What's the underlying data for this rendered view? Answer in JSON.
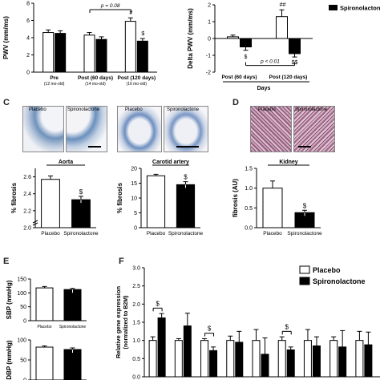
{
  "panels": {
    "A": {
      "ylabel": "PWV (mm/ms)",
      "yticks": [
        "0",
        "2",
        "4",
        "6",
        "8"
      ],
      "groups": [
        {
          "label": "Pre",
          "sub": "(12 mo-old)"
        },
        {
          "label": "Post (60 days)",
          "sub": "(14 mo-old)"
        },
        {
          "label": "Post (120 days)",
          "sub": "(16 mo-old)"
        }
      ],
      "pval": "p = 0.08",
      "sig_hash": "#",
      "sig_dollar": "$"
    },
    "B": {
      "ylabel": "Delta PWV (mm/ms)",
      "yticks": [
        "2",
        "1",
        "0",
        "-1",
        "-2"
      ],
      "xlabel": "Days",
      "groups": [
        "Post (60 days)",
        "Post (120 days)"
      ],
      "pval": "p < 0.01",
      "sig_hashhash": "##",
      "sig_dollar": "$",
      "sig_dollardollar": "$$",
      "legend": [
        "Spironolactone"
      ]
    },
    "C": {
      "label": "C",
      "hist_labels": [
        "Placebo",
        "Spironolactone",
        "Placebo",
        "Spironolactone"
      ],
      "aorta_title": "Aorta",
      "carotid_title": "Carotid artery",
      "ylabel": "% fibrosis",
      "aorta_yticks": [
        "2.0",
        "2.2",
        "2.4",
        "2.6"
      ],
      "carotid_yticks": [
        "0",
        "5",
        "10",
        "15",
        "20"
      ],
      "xcats": [
        "Placebo",
        "Spironolactone"
      ],
      "sig": "$"
    },
    "D": {
      "label": "D",
      "hist_labels": [
        "Placebo",
        "Spironolactone"
      ],
      "title": "Kidney",
      "ylabel": "fibrosis (AU)",
      "yticks": [
        "0.0",
        "0.5",
        "1.0",
        "1.5"
      ],
      "xcats": [
        "Placebo",
        "Spironolactone"
      ],
      "sig": "$"
    },
    "E": {
      "label": "E",
      "sbp_label": "SBP (mmHg)",
      "sbp_yticks": [
        "0",
        "50",
        "100",
        "150"
      ],
      "dbp_label": "DBP (mmHg)",
      "dbp_yticks": [
        "0",
        "50",
        "100"
      ],
      "xcats": [
        "Placebo",
        "Spironolactone"
      ]
    },
    "F": {
      "label": "F",
      "ylabel": "Relative gene expression (normalized to B2M)",
      "yticks": [
        "0.0",
        "0.5",
        "1.0",
        "1.5",
        "2.0",
        "2.5",
        "3.0"
      ],
      "legend": [
        "Placebo",
        "Spironolactone"
      ],
      "sig": "$"
    }
  },
  "chart_data": [
    {
      "type": "bar",
      "panel": "A",
      "categories": [
        "Pre",
        "Post (60 days)",
        "Post (120 days)"
      ],
      "ylabel": "PWV (mm/ms)",
      "ylim": [
        0,
        8
      ],
      "series": [
        {
          "values": [
            4.6,
            4.3,
            5.9
          ],
          "errors": [
            0.3,
            0.3,
            0.4
          ],
          "color": "#ffffff"
        },
        {
          "values": [
            4.5,
            3.8,
            3.6
          ],
          "errors": [
            0.3,
            0.3,
            0.3
          ],
          "color": "#000000"
        }
      ]
    },
    {
      "type": "bar",
      "panel": "B",
      "categories": [
        "Post (60 days)",
        "Post (120 days)"
      ],
      "ylabel": "Delta PWV (mm/ms)",
      "xlabel": "Days",
      "ylim": [
        -2,
        2
      ],
      "series": [
        {
          "values": [
            0.1,
            1.3
          ],
          "errors": [
            0.1,
            0.4
          ],
          "color": "#ffffff"
        },
        {
          "name": "Spironolactone",
          "values": [
            -0.5,
            -0.9
          ],
          "errors": [
            0.2,
            0.2
          ],
          "color": "#000000"
        }
      ]
    },
    {
      "type": "bar",
      "panel": "C-aorta",
      "title": "Aorta",
      "categories": [
        "Placebo",
        "Spironolactone"
      ],
      "ylabel": "% fibrosis",
      "ylim": [
        2.0,
        2.7
      ],
      "values": [
        2.57,
        2.33
      ],
      "errors": [
        0.04,
        0.04
      ]
    },
    {
      "type": "bar",
      "panel": "C-carotid",
      "title": "Carotid artery",
      "categories": [
        "Placebo",
        "Spironolactone"
      ],
      "ylabel": "% fibrosis",
      "ylim": [
        0,
        20
      ],
      "values": [
        17.5,
        14.5
      ],
      "errors": [
        0.5,
        1.0
      ]
    },
    {
      "type": "bar",
      "panel": "D",
      "title": "Kidney",
      "categories": [
        "Placebo",
        "Spironolactone"
      ],
      "ylabel": "fibrosis (AU)",
      "ylim": [
        0,
        1.5
      ],
      "values": [
        1.0,
        0.38
      ],
      "errors": [
        0.18,
        0.06
      ]
    },
    {
      "type": "bar",
      "panel": "E-SBP",
      "categories": [
        "Placebo",
        "Spironolactone"
      ],
      "ylabel": "SBP (mmHg)",
      "ylim": [
        0,
        150
      ],
      "values": [
        118,
        112
      ],
      "errors": [
        5,
        4
      ]
    },
    {
      "type": "bar",
      "panel": "E-DBP",
      "categories": [
        "Placebo",
        "Spironolactone"
      ],
      "ylabel": "DBP (mmHg)",
      "ylim": [
        0,
        100
      ],
      "values": [
        82,
        76
      ],
      "errors": [
        3,
        4
      ]
    },
    {
      "type": "bar",
      "panel": "F",
      "ylabel": "Relative gene expression (normalized to B2M)",
      "ylim": [
        0,
        3.0
      ],
      "series": [
        {
          "name": "Placebo",
          "values": [
            1.0,
            1.0,
            1.0,
            1.0,
            1.0,
            1.0,
            1.0,
            1.0,
            1.0
          ],
          "errors": [
            0.1,
            0.05,
            0.05,
            0.12,
            0.3,
            0.1,
            0.3,
            0.1,
            0.25
          ],
          "color": "#ffffff"
        },
        {
          "name": "Spironolactone",
          "values": [
            1.62,
            1.4,
            0.72,
            0.95,
            0.62,
            0.74,
            0.85,
            0.82,
            0.88
          ],
          "errors": [
            0.12,
            0.35,
            0.1,
            0.3,
            0.45,
            0.08,
            0.25,
            0.45,
            0.35
          ],
          "color": "#000000"
        }
      ]
    }
  ]
}
